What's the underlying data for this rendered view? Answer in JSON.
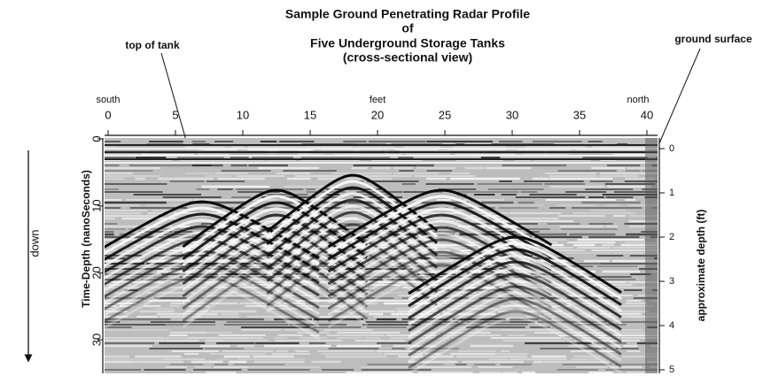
{
  "figure": {
    "title": [
      "Sample Ground Penetrating Radar Profile",
      "of",
      "Five Underground Storage Tanks",
      "(cross-sectional view)"
    ],
    "annotations": {
      "top_of_tank": "top of tank",
      "ground_surface": "ground surface",
      "direction": "down"
    },
    "top_axis": {
      "label": "feet",
      "left_end": "south",
      "right_end": "north",
      "ticks": [
        0,
        5,
        10,
        15,
        20,
        25,
        30,
        35,
        40
      ]
    },
    "left_axis": {
      "label": "Time-Depth (nanoSeconds)",
      "ticks": [
        0,
        10,
        20,
        30
      ]
    },
    "right_axis": {
      "label": "approximate depth (ft)",
      "ticks": [
        0,
        1,
        2,
        3,
        4,
        5
      ]
    }
  }
}
